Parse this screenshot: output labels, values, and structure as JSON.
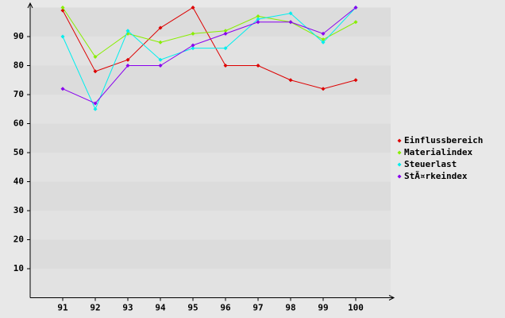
{
  "chart_data": {
    "type": "line",
    "categories": [
      "91",
      "92",
      "93",
      "94",
      "95",
      "96",
      "97",
      "98",
      "99",
      "100"
    ],
    "series": [
      {
        "name": "Einflussbereich",
        "color": "#dd0000",
        "values": [
          99,
          78,
          82,
          93,
          100,
          80,
          80,
          75,
          72,
          75
        ]
      },
      {
        "name": "Materialindex",
        "color": "#88ee00",
        "values": [
          100,
          83,
          91,
          88,
          91,
          92,
          97,
          95,
          89,
          95
        ]
      },
      {
        "name": "Steuerlast",
        "color": "#00eeee",
        "values": [
          90,
          65,
          92,
          82,
          86,
          86,
          96,
          98,
          88,
          100
        ]
      },
      {
        "name": "StÃ¤rkeindex",
        "color": "#8800ee",
        "values": [
          72,
          67,
          80,
          80,
          87,
          91,
          95,
          95,
          91,
          100
        ]
      }
    ],
    "ylim": [
      0,
      100
    ],
    "yticks": [
      10,
      20,
      30,
      40,
      50,
      60,
      70,
      80,
      90
    ],
    "grid": true,
    "legend": "right"
  }
}
